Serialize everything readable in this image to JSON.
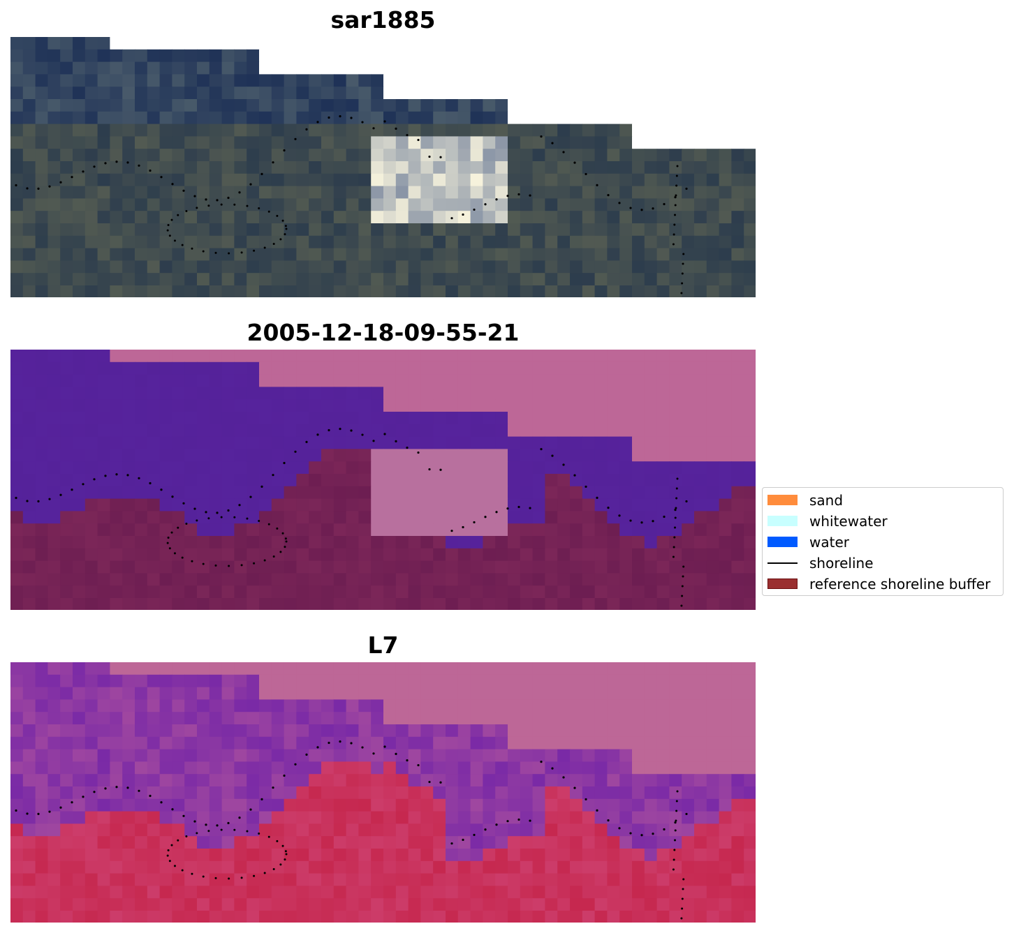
{
  "figure": {
    "panels": [
      {
        "id": "rgb",
        "title": "sar1885"
      },
      {
        "id": "classified",
        "title": "2005-12-18-09-55-21"
      },
      {
        "id": "index",
        "title": "L7"
      }
    ]
  },
  "legend": {
    "items": [
      {
        "label": "sand",
        "kind": "patch",
        "color": "#ff8c3c"
      },
      {
        "label": "whitewater",
        "kind": "patch",
        "color": "#c8ffff"
      },
      {
        "label": "water",
        "kind": "patch",
        "color": "#005aff"
      },
      {
        "label": "shoreline",
        "kind": "line",
        "color": "#000000"
      },
      {
        "label": "reference shoreline buffer",
        "kind": "patch",
        "color": "#9a2f30",
        "edge": "#6b0f10"
      }
    ]
  },
  "colors": {
    "masked_no_data_rgb": "#ffffff",
    "masked_no_data_overlay": "#bd6797",
    "rgb_dark": "#2d3d4d",
    "water_overlay": "#55229a",
    "land_overlay": "#6d1e52",
    "whitewater_overlay": "#b8709e",
    "index_water": "#7a2aa6",
    "index_land": "#c6284f"
  }
}
